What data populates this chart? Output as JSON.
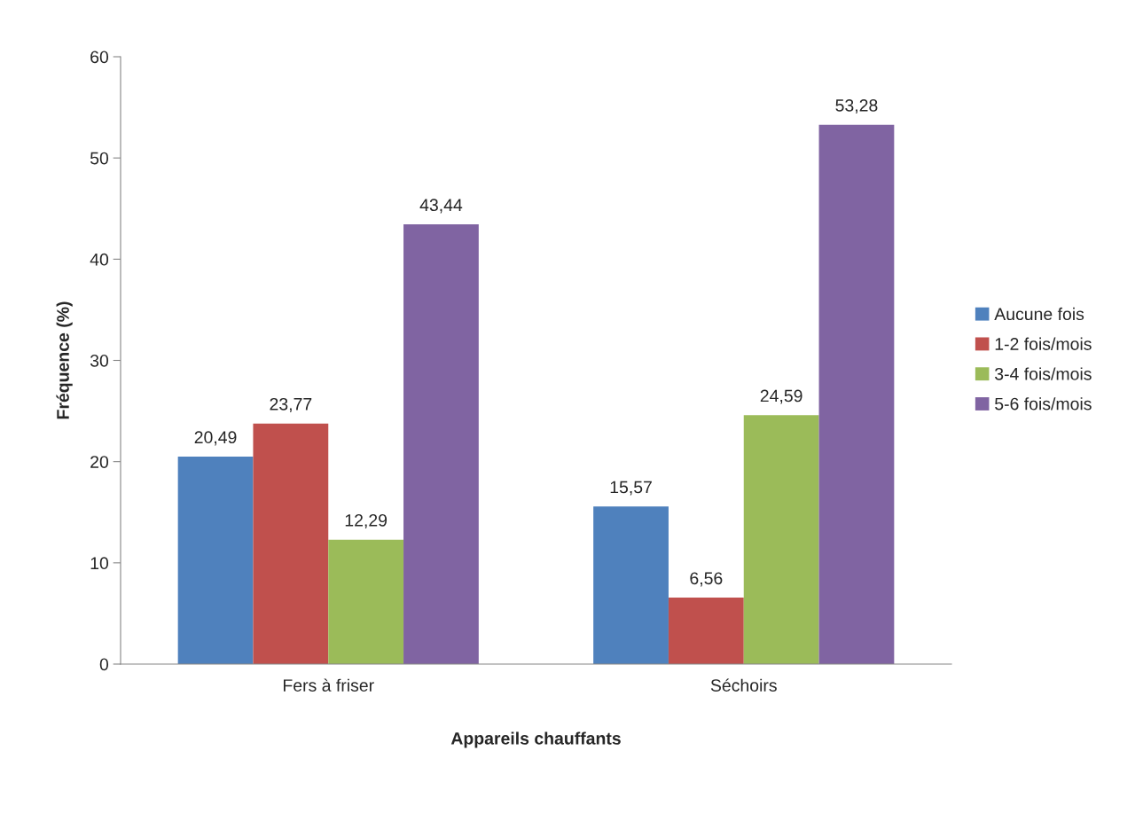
{
  "chart_data": {
    "type": "bar",
    "xlabel": "Appareils chauffants",
    "ylabel": "Fréquence (%)",
    "categories": [
      "Fers à friser",
      "Séchoirs"
    ],
    "series": [
      {
        "name": "Aucune fois",
        "color": "#4f81bd",
        "values": [
          20.49,
          15.57
        ],
        "value_labels": [
          "20,49",
          "15,57"
        ]
      },
      {
        "name": "1-2 fois/mois",
        "color": "#c0504d",
        "values": [
          23.77,
          6.56
        ],
        "value_labels": [
          "23,77",
          "6,56"
        ]
      },
      {
        "name": "3-4 fois/mois",
        "color": "#9bbb59",
        "values": [
          12.29,
          24.59
        ],
        "value_labels": [
          "12,29",
          "24,59"
        ]
      },
      {
        "name": "5-6 fois/mois",
        "color": "#8064a2",
        "values": [
          43.44,
          53.28
        ],
        "value_labels": [
          "43,44",
          "53,28"
        ]
      }
    ],
    "ylim": [
      0,
      60
    ],
    "yticks": [
      0,
      10,
      20,
      30,
      40,
      50,
      60
    ],
    "grid": false,
    "legend": "right"
  }
}
